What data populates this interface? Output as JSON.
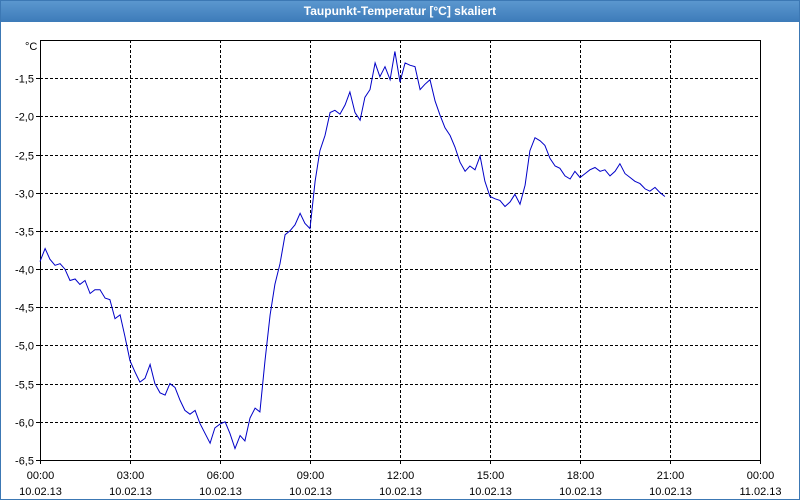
{
  "window": {
    "title": "Taupunkt-Temperatur [°C] skaliert"
  },
  "chart_data": {
    "type": "line",
    "title": "Taupunkt-Temperatur [°C] skaliert",
    "y_unit_label": "°C",
    "ylim": [
      -6.5,
      -1.0
    ],
    "y_ticks": [
      {
        "value": -1.5,
        "label": "-1,5"
      },
      {
        "value": -2.0,
        "label": "-2,0"
      },
      {
        "value": -2.5,
        "label": "-2,5"
      },
      {
        "value": -3.0,
        "label": "-3,0"
      },
      {
        "value": -3.5,
        "label": "-3,5"
      },
      {
        "value": -4.0,
        "label": "-4,0"
      },
      {
        "value": -4.5,
        "label": "-4,5"
      },
      {
        "value": -5.0,
        "label": "-5,0"
      },
      {
        "value": -5.5,
        "label": "-5,5"
      },
      {
        "value": -6.0,
        "label": "-6,0"
      },
      {
        "value": -6.5,
        "label": "-6,5"
      }
    ],
    "x_unit": "hours since 10.02.13 00:00",
    "xlim": [
      0,
      24
    ],
    "x_ticks": [
      {
        "value": 0,
        "time": "00:00",
        "date": "10.02.13"
      },
      {
        "value": 3,
        "time": "03:00",
        "date": "10.02.13"
      },
      {
        "value": 6,
        "time": "06:00",
        "date": "10.02.13"
      },
      {
        "value": 9,
        "time": "09:00",
        "date": "10.02.13"
      },
      {
        "value": 12,
        "time": "12:00",
        "date": "10.02.13"
      },
      {
        "value": 15,
        "time": "15:00",
        "date": "10.02.13"
      },
      {
        "value": 18,
        "time": "18:00",
        "date": "10.02.13"
      },
      {
        "value": 21,
        "time": "21:00",
        "date": "10.02.13"
      },
      {
        "value": 24,
        "time": "00:00",
        "date": "11.02.13"
      }
    ],
    "grid": true,
    "grid_style": "dashed",
    "series_color": "#0000c8",
    "series": [
      {
        "points": [
          [
            0.0,
            -3.9
          ],
          [
            0.17,
            -3.73
          ],
          [
            0.33,
            -3.87
          ],
          [
            0.5,
            -3.95
          ],
          [
            0.67,
            -3.93
          ],
          [
            0.83,
            -4.0
          ],
          [
            1.0,
            -4.15
          ],
          [
            1.17,
            -4.13
          ],
          [
            1.33,
            -4.2
          ],
          [
            1.5,
            -4.15
          ],
          [
            1.67,
            -4.32
          ],
          [
            1.83,
            -4.27
          ],
          [
            2.0,
            -4.27
          ],
          [
            2.17,
            -4.38
          ],
          [
            2.33,
            -4.4
          ],
          [
            2.5,
            -4.65
          ],
          [
            2.67,
            -4.6
          ],
          [
            2.83,
            -4.88
          ],
          [
            3.0,
            -5.2
          ],
          [
            3.17,
            -5.35
          ],
          [
            3.33,
            -5.48
          ],
          [
            3.5,
            -5.43
          ],
          [
            3.67,
            -5.25
          ],
          [
            3.83,
            -5.5
          ],
          [
            4.0,
            -5.62
          ],
          [
            4.17,
            -5.65
          ],
          [
            4.33,
            -5.5
          ],
          [
            4.5,
            -5.55
          ],
          [
            4.67,
            -5.72
          ],
          [
            4.83,
            -5.85
          ],
          [
            5.0,
            -5.9
          ],
          [
            5.17,
            -5.85
          ],
          [
            5.33,
            -6.02
          ],
          [
            5.5,
            -6.15
          ],
          [
            5.67,
            -6.28
          ],
          [
            5.83,
            -6.08
          ],
          [
            6.0,
            -6.03
          ],
          [
            6.17,
            -6.0
          ],
          [
            6.33,
            -6.15
          ],
          [
            6.5,
            -6.35
          ],
          [
            6.67,
            -6.18
          ],
          [
            6.83,
            -6.25
          ],
          [
            7.0,
            -5.95
          ],
          [
            7.17,
            -5.82
          ],
          [
            7.33,
            -5.87
          ],
          [
            7.5,
            -5.2
          ],
          [
            7.67,
            -4.6
          ],
          [
            7.83,
            -4.2
          ],
          [
            8.0,
            -3.93
          ],
          [
            8.17,
            -3.55
          ],
          [
            8.33,
            -3.5
          ],
          [
            8.5,
            -3.42
          ],
          [
            8.67,
            -3.27
          ],
          [
            8.83,
            -3.4
          ],
          [
            9.0,
            -3.47
          ],
          [
            9.17,
            -2.85
          ],
          [
            9.33,
            -2.45
          ],
          [
            9.5,
            -2.25
          ],
          [
            9.67,
            -1.95
          ],
          [
            9.83,
            -1.92
          ],
          [
            10.0,
            -1.97
          ],
          [
            10.17,
            -1.85
          ],
          [
            10.33,
            -1.68
          ],
          [
            10.5,
            -1.95
          ],
          [
            10.67,
            -2.05
          ],
          [
            10.83,
            -1.75
          ],
          [
            11.0,
            -1.65
          ],
          [
            11.17,
            -1.3
          ],
          [
            11.33,
            -1.48
          ],
          [
            11.5,
            -1.35
          ],
          [
            11.67,
            -1.52
          ],
          [
            11.83,
            -1.15
          ],
          [
            12.0,
            -1.55
          ],
          [
            12.17,
            -1.3
          ],
          [
            12.33,
            -1.33
          ],
          [
            12.5,
            -1.35
          ],
          [
            12.67,
            -1.65
          ],
          [
            12.83,
            -1.58
          ],
          [
            13.0,
            -1.52
          ],
          [
            13.17,
            -1.8
          ],
          [
            13.33,
            -1.98
          ],
          [
            13.5,
            -2.15
          ],
          [
            13.67,
            -2.25
          ],
          [
            13.83,
            -2.4
          ],
          [
            14.0,
            -2.6
          ],
          [
            14.17,
            -2.72
          ],
          [
            14.33,
            -2.65
          ],
          [
            14.5,
            -2.7
          ],
          [
            14.67,
            -2.52
          ],
          [
            14.83,
            -2.85
          ],
          [
            15.0,
            -3.05
          ],
          [
            15.17,
            -3.08
          ],
          [
            15.33,
            -3.1
          ],
          [
            15.5,
            -3.18
          ],
          [
            15.67,
            -3.12
          ],
          [
            15.83,
            -3.02
          ],
          [
            16.0,
            -3.15
          ],
          [
            16.17,
            -2.9
          ],
          [
            16.33,
            -2.45
          ],
          [
            16.5,
            -2.28
          ],
          [
            16.67,
            -2.32
          ],
          [
            16.83,
            -2.38
          ],
          [
            17.0,
            -2.55
          ],
          [
            17.17,
            -2.65
          ],
          [
            17.33,
            -2.68
          ],
          [
            17.5,
            -2.78
          ],
          [
            17.67,
            -2.82
          ],
          [
            17.83,
            -2.72
          ],
          [
            18.0,
            -2.8
          ],
          [
            18.17,
            -2.75
          ],
          [
            18.33,
            -2.7
          ],
          [
            18.5,
            -2.67
          ],
          [
            18.67,
            -2.72
          ],
          [
            18.83,
            -2.7
          ],
          [
            19.0,
            -2.78
          ],
          [
            19.17,
            -2.72
          ],
          [
            19.33,
            -2.62
          ],
          [
            19.5,
            -2.75
          ],
          [
            19.67,
            -2.8
          ],
          [
            19.83,
            -2.85
          ],
          [
            20.0,
            -2.88
          ],
          [
            20.17,
            -2.95
          ],
          [
            20.33,
            -2.98
          ],
          [
            20.5,
            -2.93
          ],
          [
            20.67,
            -3.0
          ],
          [
            20.83,
            -3.05
          ]
        ]
      }
    ]
  }
}
